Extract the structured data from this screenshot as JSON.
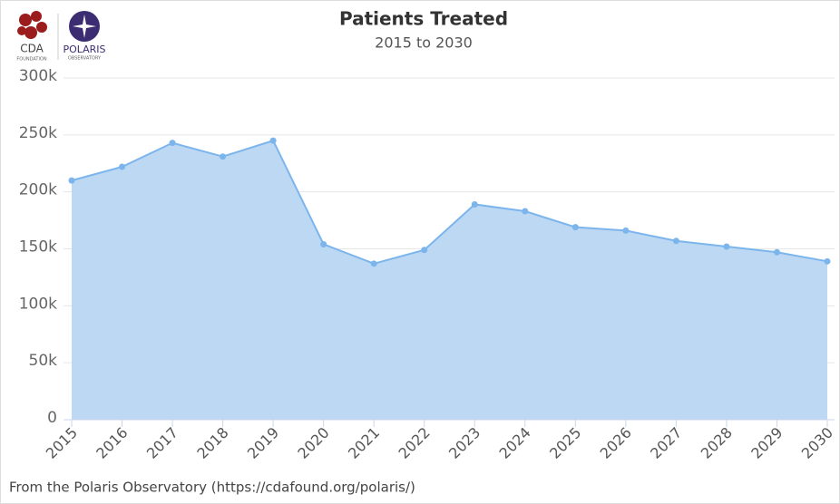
{
  "chart_data": {
    "type": "area",
    "title": "Patients Treated",
    "subtitle": "2015 to 2030",
    "source": "From the Polaris Observatory (https://cdafound.org/polaris/)",
    "logos": {
      "left": "CDA",
      "left_sub": "FOUNDATION",
      "right": "POLARIS",
      "right_sub": "OBSERVATORY"
    },
    "categories": [
      "2015",
      "2016",
      "2017",
      "2018",
      "2019",
      "2020",
      "2021",
      "2022",
      "2023",
      "2024",
      "2025",
      "2026",
      "2027",
      "2028",
      "2029",
      "2030"
    ],
    "values": [
      210000,
      222000,
      243000,
      231000,
      245000,
      154000,
      137000,
      149000,
      189000,
      183000,
      169000,
      166000,
      157000,
      152000,
      147000,
      139000
    ],
    "color": "#7cb5ec",
    "fill": "#bcd8f3",
    "ylim": [
      0,
      300000
    ],
    "yticks": [
      0,
      {
        "value": 50000,
        "label": "50k"
      },
      {
        "value": 100000,
        "label": "100k"
      },
      {
        "value": 150000,
        "label": "150k"
      },
      {
        "value": 200000,
        "label": "200k"
      },
      {
        "value": 250000,
        "label": "250k"
      },
      {
        "value": 300000,
        "label": "300k"
      }
    ],
    "grid": true
  }
}
